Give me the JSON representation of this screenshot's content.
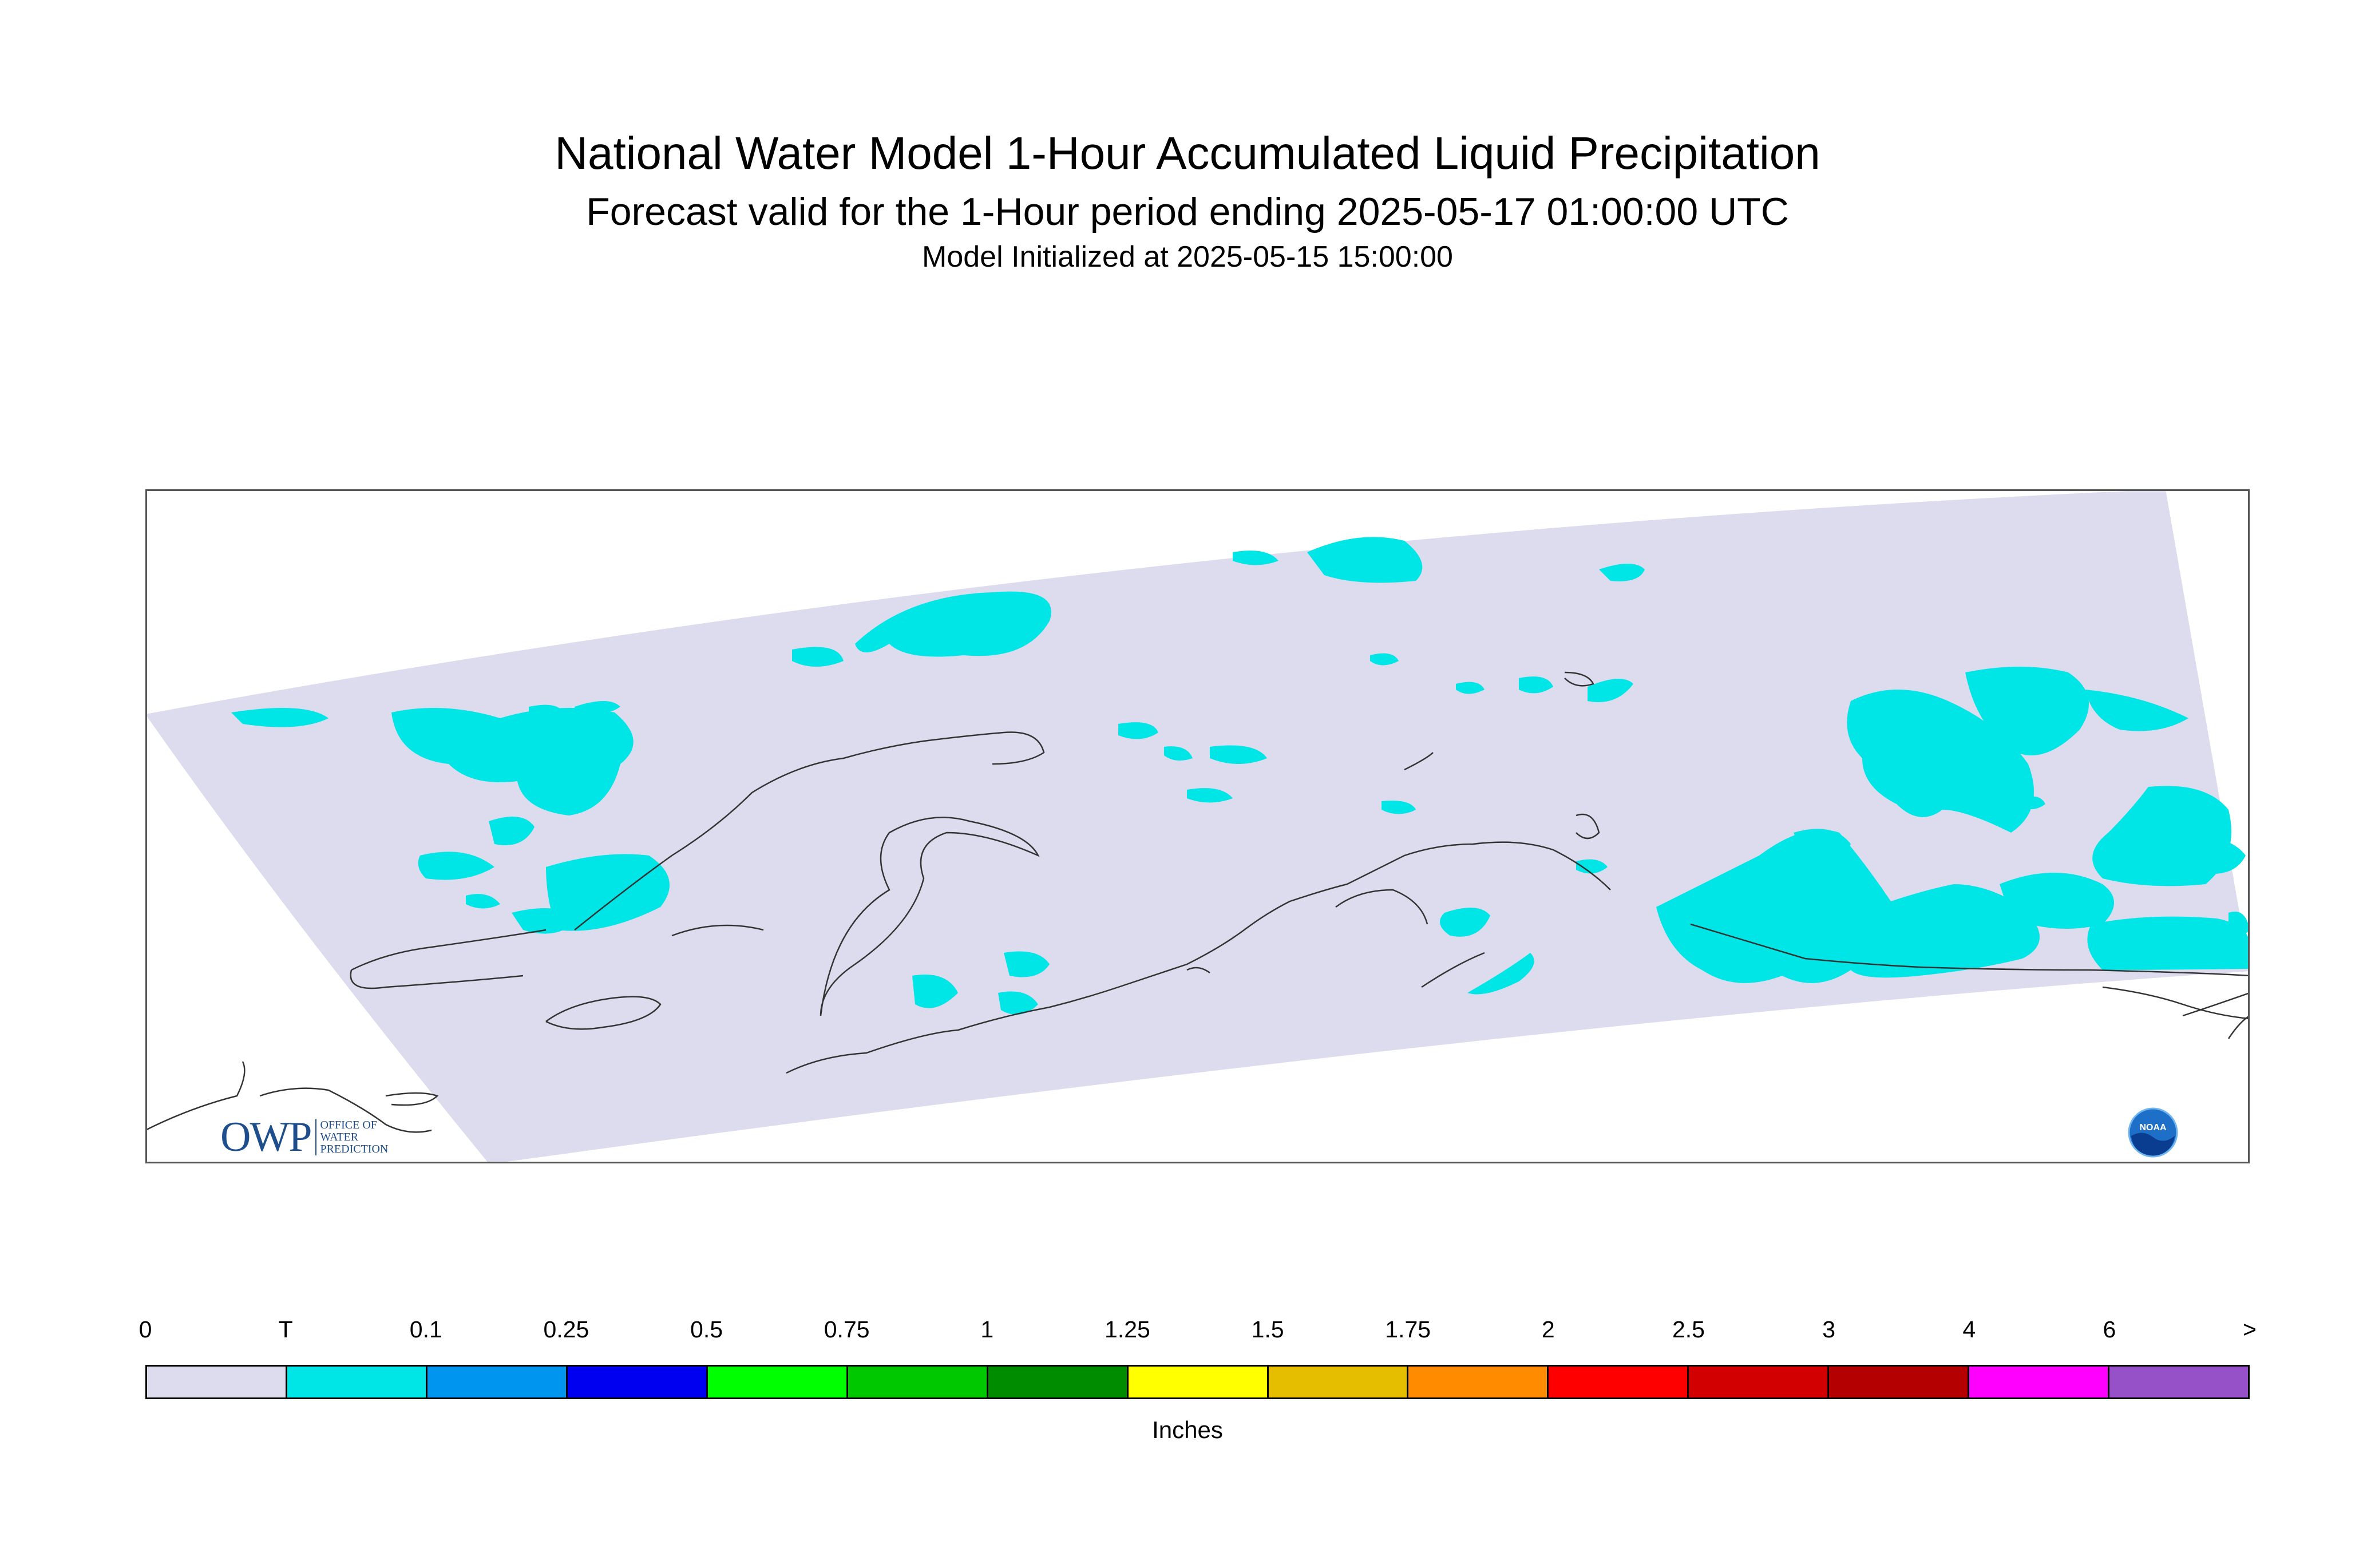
{
  "header": {
    "title": "National Water Model 1-Hour Accumulated Liquid Precipitation",
    "subtitle": "Forecast valid for the 1-Hour period ending 2025-05-17 01:00:00 UTC",
    "initialized": "Model Initialized at 2025-05-15 15:00:00"
  },
  "legend": {
    "units": "Inches",
    "labels": [
      "0",
      "T",
      "0.1",
      "0.25",
      "0.5",
      "0.75",
      "1",
      "1.25",
      "1.5",
      "1.75",
      "2",
      "2.5",
      "3",
      "4",
      "6",
      ">"
    ],
    "colors": [
      "#dcdcee",
      "#00e5e5",
      "#0096f0",
      "#0000f0",
      "#00ff00",
      "#00c800",
      "#008c00",
      "#ffff00",
      "#e6be00",
      "#ff8c00",
      "#ff0000",
      "#d20000",
      "#b40000",
      "#ff00ff",
      "#9650c8"
    ]
  },
  "map": {
    "domain_color": "#dcdcee",
    "precip_color": "#00e5e5",
    "coast_color": "#333333"
  },
  "logos": {
    "owp_mark": "OWP",
    "owp_text": [
      "OFFICE OF",
      "WATER",
      "PREDICTION"
    ],
    "noaa_text": "NOAA"
  }
}
